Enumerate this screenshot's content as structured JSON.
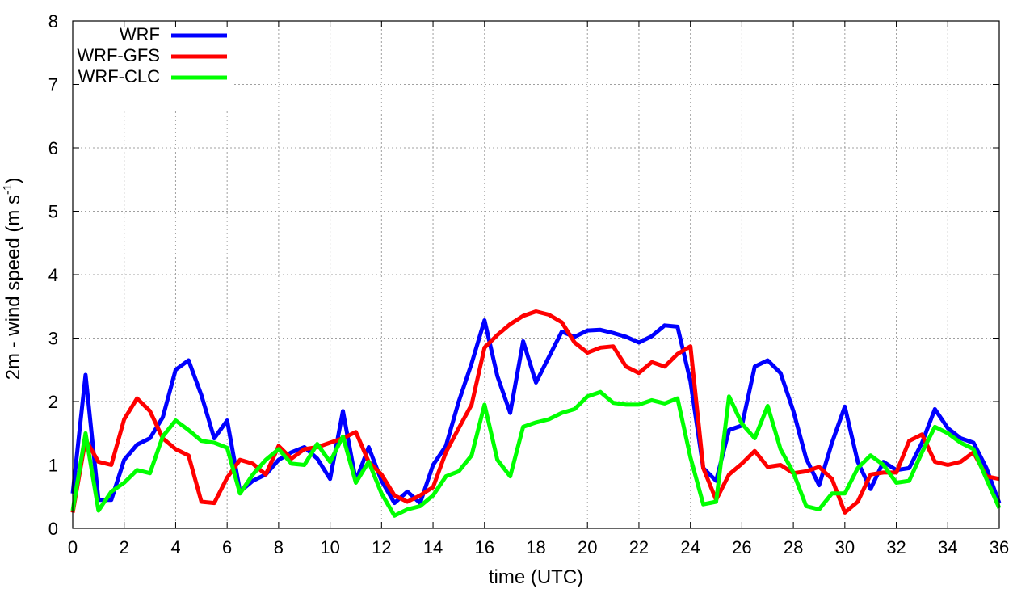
{
  "chart_data": {
    "type": "line",
    "title": "",
    "xlabel": "time (UTC)",
    "ylabel_main": "2m - wind speed  (m s",
    "ylabel_sup": "-1",
    "ylabel_close": ")",
    "xlim": [
      0,
      36
    ],
    "ylim": [
      0,
      8
    ],
    "xticks": [
      0,
      2,
      4,
      6,
      8,
      10,
      12,
      14,
      16,
      18,
      20,
      22,
      24,
      26,
      28,
      30,
      32,
      34,
      36
    ],
    "yticks": [
      0,
      1,
      2,
      3,
      4,
      5,
      6,
      7,
      8
    ],
    "grid": true,
    "legend_position": "top-left",
    "x": [
      0,
      0.5,
      1,
      1.5,
      2,
      2.5,
      3,
      3.5,
      4,
      4.5,
      5,
      5.5,
      6,
      6.5,
      7,
      7.5,
      8,
      8.5,
      9,
      9.5,
      10,
      10.5,
      11,
      11.5,
      12,
      12.5,
      13,
      13.5,
      14,
      14.5,
      15,
      15.5,
      16,
      16.5,
      17,
      17.5,
      18,
      18.5,
      19,
      19.5,
      20,
      20.5,
      21,
      21.5,
      22,
      22.5,
      23,
      23.5,
      24,
      24.5,
      25,
      25.5,
      26,
      26.5,
      27,
      27.5,
      28,
      28.5,
      29,
      29.5,
      30,
      30.5,
      31,
      31.5,
      32,
      32.5,
      33,
      33.5,
      34,
      34.5,
      35,
      35.5,
      36
    ],
    "series": [
      {
        "name": "WRF",
        "color": "#0000ff",
        "values": [
          0.55,
          2.42,
          0.45,
          0.45,
          1.08,
          1.32,
          1.42,
          1.75,
          2.5,
          2.65,
          2.1,
          1.42,
          1.7,
          0.58,
          0.75,
          0.85,
          1.08,
          1.2,
          1.28,
          1.1,
          0.78,
          1.85,
          0.75,
          1.28,
          0.75,
          0.4,
          0.58,
          0.4,
          1.0,
          1.3,
          2.0,
          2.6,
          3.28,
          2.4,
          1.82,
          2.95,
          2.3,
          2.7,
          3.1,
          3.02,
          3.12,
          3.13,
          3.08,
          3.02,
          2.93,
          3.03,
          3.2,
          3.18,
          2.32,
          0.95,
          0.75,
          1.55,
          1.62,
          2.55,
          2.65,
          2.45,
          1.85,
          1.1,
          0.68,
          1.35,
          1.92,
          1.05,
          0.62,
          1.05,
          0.92,
          0.95,
          1.35,
          1.88,
          1.58,
          1.42,
          1.35,
          0.95,
          0.4
        ]
      },
      {
        "name": "WRF-GFS",
        "color": "#ff0000",
        "values": [
          0.25,
          1.4,
          1.05,
          1.0,
          1.72,
          2.05,
          1.85,
          1.42,
          1.25,
          1.15,
          0.42,
          0.4,
          0.8,
          1.08,
          1.02,
          0.85,
          1.3,
          1.1,
          1.25,
          1.28,
          1.35,
          1.42,
          1.52,
          1.05,
          0.85,
          0.52,
          0.42,
          0.52,
          0.65,
          1.2,
          1.58,
          1.95,
          2.85,
          3.05,
          3.22,
          3.35,
          3.42,
          3.37,
          3.25,
          2.93,
          2.77,
          2.85,
          2.87,
          2.55,
          2.45,
          2.62,
          2.55,
          2.75,
          2.87,
          0.95,
          0.45,
          0.85,
          1.02,
          1.22,
          0.97,
          1.0,
          0.87,
          0.9,
          0.97,
          0.78,
          0.25,
          0.42,
          0.85,
          0.88,
          0.88,
          1.38,
          1.48,
          1.05,
          1.0,
          1.05,
          1.2,
          0.82,
          0.78
        ]
      },
      {
        "name": "WRF-CLC",
        "color": "#00ff00",
        "values": [
          0.28,
          1.5,
          0.28,
          0.58,
          0.72,
          0.92,
          0.87,
          1.45,
          1.7,
          1.55,
          1.38,
          1.35,
          1.27,
          0.55,
          0.85,
          1.08,
          1.25,
          1.02,
          1.0,
          1.33,
          1.05,
          1.45,
          0.72,
          1.05,
          0.55,
          0.2,
          0.3,
          0.35,
          0.52,
          0.82,
          0.9,
          1.15,
          1.95,
          1.08,
          0.82,
          1.6,
          1.67,
          1.72,
          1.82,
          1.88,
          2.08,
          2.15,
          1.98,
          1.95,
          1.95,
          2.02,
          1.97,
          2.05,
          1.12,
          0.38,
          0.42,
          2.08,
          1.65,
          1.42,
          1.93,
          1.25,
          0.88,
          0.35,
          0.3,
          0.55,
          0.55,
          0.95,
          1.15,
          1.0,
          0.72,
          0.75,
          1.2,
          1.6,
          1.5,
          1.35,
          1.25,
          0.78,
          0.32
        ]
      }
    ]
  }
}
